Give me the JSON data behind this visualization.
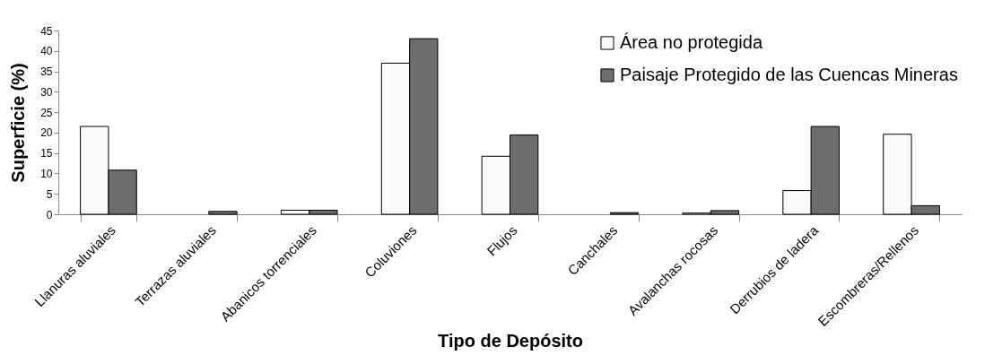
{
  "chart_data": {
    "type": "bar",
    "xlabel": "Tipo de Depósito",
    "ylabel": "Superficie (%)",
    "categories": [
      "Llanuras aluviales",
      "Terrazas aluviales",
      "Abanicos torrenciales",
      "Coluviones",
      "Flujos",
      "Canchales",
      "Avalanchas rocosas",
      "Derrubios de ladera",
      "Escombreras/Rellenos"
    ],
    "series": [
      {
        "name": "Área no protegida",
        "color": "#fbfbfb",
        "values": [
          21.5,
          0,
          1.0,
          37,
          14.2,
          0,
          0.3,
          5.8,
          19.6
        ]
      },
      {
        "name": "Paisaje Protegido de las Cuencas Mineras",
        "color": "#6d6d6d",
        "values": [
          10.8,
          0.7,
          1.0,
          43,
          19.4,
          0.4,
          0.9,
          21.5,
          2.1
        ]
      }
    ],
    "ylim": [
      0,
      45
    ],
    "yticks": [
      0,
      5,
      10,
      15,
      20,
      25,
      30,
      35,
      40,
      45
    ],
    "grid": false,
    "legend": "top right"
  }
}
